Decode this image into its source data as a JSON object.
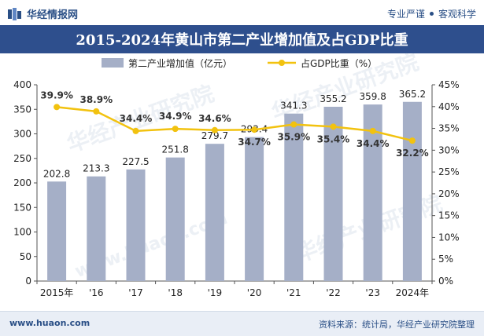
{
  "header": {
    "brand": "华经情报网",
    "tagline_left": "专业严谨",
    "tagline_right": "客观科学",
    "title": "2015-2024年黄山市第二产业增加值及占GDP比重"
  },
  "footer": {
    "site": "www.huaon.com",
    "source": "资料来源：统计局，华经产业研究院整理"
  },
  "watermarks": [
    "华经产业研究院",
    "华经产业研究院",
    "华经产业研究院",
    "www.huaon.com"
  ],
  "colors": {
    "bar": "#a5afc7",
    "line": "#f2c20f",
    "title_bg": "#2e4f8d",
    "brand": "#2a4f86"
  },
  "chart_data": {
    "type": "bar",
    "categories": [
      "2015年",
      "'16",
      "'17",
      "'18",
      "'19",
      "'20",
      "'21",
      "'22",
      "'23",
      "2024年"
    ],
    "series": [
      {
        "name": "第二产业增加值（亿元）",
        "type": "bar",
        "axis": "left",
        "values": [
          202.8,
          213.3,
          227.5,
          251.8,
          279.7,
          293.4,
          341.3,
          355.2,
          359.8,
          365.2
        ],
        "labels": [
          "202.8",
          "213.3",
          "227.5",
          "251.8",
          "279.7",
          "293.4",
          "341.3",
          "355.2",
          "359.8",
          "365.2"
        ]
      },
      {
        "name": "占GDP比重（%）",
        "type": "line",
        "axis": "right",
        "values": [
          39.9,
          38.9,
          34.4,
          34.9,
          34.6,
          34.7,
          35.9,
          35.4,
          34.4,
          32.2
        ],
        "labels": [
          "39.9%",
          "38.9%",
          "34.4%",
          "34.9%",
          "34.6%",
          "34.7%",
          "35.9%",
          "35.4%",
          "34.4%",
          "32.2%"
        ]
      }
    ],
    "y_left": {
      "min": 0,
      "max": 400,
      "ticks": [
        "0",
        "50",
        "100",
        "150",
        "200",
        "250",
        "300",
        "350",
        "400"
      ]
    },
    "y_right": {
      "min": 0,
      "max": 45,
      "ticks": [
        "0%",
        "5%",
        "10%",
        "15%",
        "20%",
        "25%",
        "30%",
        "35%",
        "40%",
        "45%"
      ]
    },
    "legend": "top-center",
    "grid": false
  }
}
